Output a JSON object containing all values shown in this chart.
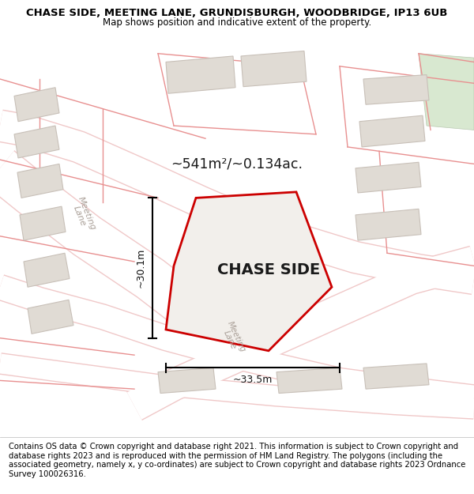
{
  "title_line1": "CHASE SIDE, MEETING LANE, GRUNDISBURGH, WOODBRIDGE, IP13 6UB",
  "title_line2": "Map shows position and indicative extent of the property.",
  "footer_text": "Contains OS data © Crown copyright and database right 2021. This information is subject to Crown copyright and database rights 2023 and is reproduced with the permission of HM Land Registry. The polygons (including the associated geometry, namely x, y co-ordinates) are subject to Crown copyright and database rights 2023 Ordnance Survey 100026316.",
  "area_label": "~541m²/~0.134ac.",
  "property_label": "CHASE SIDE",
  "dim1_label": "~30.1m",
  "dim2_label": "~33.5m",
  "map_bg": "#f2efeb",
  "property_fill": "#f2efeb",
  "property_edge": "#cc0000",
  "meeting_lane_label": "Meeting\nLane",
  "meeting_lane_label2": "Meeting\nLane",
  "title_fontsize": 9.5,
  "subtitle_fontsize": 8.5,
  "footer_fontsize": 7.2,
  "road_pink": "#f0c8c8",
  "road_white": "#ffffff",
  "building_face": "#e0dbd4",
  "building_edge": "#c8c0b8",
  "green_patch": "#d8e8d0"
}
